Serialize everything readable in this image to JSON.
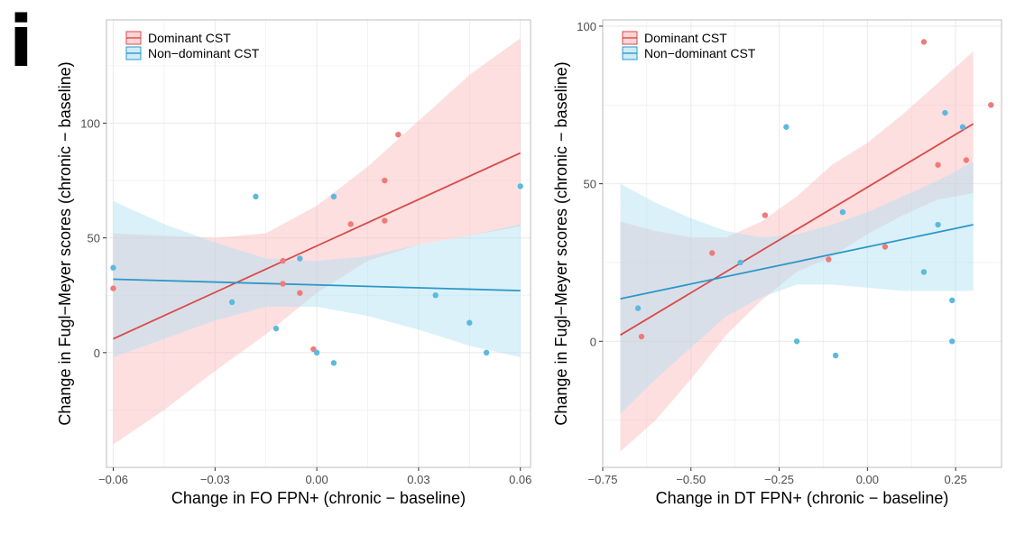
{
  "panel_label": "i",
  "colors": {
    "dominant": "#d94a48",
    "dominant_fill": "#fbb9bb",
    "dominant_point": "#ef7b78",
    "nondominant": "#2c98c8",
    "nondominant_fill": "#aee0f2",
    "nondominant_point": "#5cb9df",
    "grid": "#ebebeb",
    "frame": "#bdbdbd"
  },
  "chart_data": [
    {
      "type": "scatter",
      "title": "",
      "xlabel": "Change in FO FPN+ (chronic − baseline)",
      "ylabel": "Change in Fugl−Meyer scores (chronic − baseline)",
      "xlim": [
        -0.062,
        0.063
      ],
      "ylim": [
        -50,
        145
      ],
      "x_ticks": [
        -0.06,
        -0.03,
        0.0,
        0.03,
        0.06
      ],
      "x_tick_labels": [
        "−0.06",
        "−0.03",
        "0.00",
        "0.03",
        "0.06"
      ],
      "y_ticks": [
        0,
        50,
        100
      ],
      "y_tick_labels": [
        "0",
        "50",
        "100"
      ],
      "grid": true,
      "legend": {
        "position": "top-left",
        "entries": [
          "Dominant CST",
          "Non−dominant CST"
        ]
      },
      "series": [
        {
          "name": "Dominant CST",
          "points": [
            {
              "x": -0.06,
              "y": 28
            },
            {
              "x": -0.01,
              "y": 40
            },
            {
              "x": -0.01,
              "y": 30
            },
            {
              "x": -0.005,
              "y": 26
            },
            {
              "x": -0.001,
              "y": 1.5
            },
            {
              "x": 0.01,
              "y": 56
            },
            {
              "x": 0.02,
              "y": 75
            },
            {
              "x": 0.02,
              "y": 57.5
            },
            {
              "x": 0.024,
              "y": 95
            }
          ],
          "fit": {
            "x": [
              -0.06,
              0.06
            ],
            "y": [
              6,
              87
            ]
          },
          "ci_band": {
            "x": [
              -0.06,
              -0.045,
              -0.03,
              -0.015,
              0.0,
              0.015,
              0.03,
              0.045,
              0.06
            ],
            "lower": [
              -40,
              -25,
              -8,
              8,
              26,
              40,
              47,
              51,
              55
            ],
            "upper": [
              52,
              51,
              50,
              52,
              64,
              81,
              101,
              121,
              137
            ]
          }
        },
        {
          "name": "Non−dominant CST",
          "points": [
            {
              "x": -0.06,
              "y": 37
            },
            {
              "x": -0.025,
              "y": 22
            },
            {
              "x": -0.018,
              "y": 68
            },
            {
              "x": -0.012,
              "y": 10.5
            },
            {
              "x": -0.005,
              "y": 41
            },
            {
              "x": 0.0,
              "y": 0
            },
            {
              "x": 0.005,
              "y": 68
            },
            {
              "x": 0.005,
              "y": -4.5
            },
            {
              "x": 0.035,
              "y": 25
            },
            {
              "x": 0.045,
              "y": 13
            },
            {
              "x": 0.05,
              "y": 0
            },
            {
              "x": 0.06,
              "y": 72.5
            }
          ],
          "fit": {
            "x": [
              -0.06,
              0.06
            ],
            "y": [
              32,
              27
            ]
          },
          "ci_band": {
            "x": [
              -0.06,
              -0.045,
              -0.03,
              -0.015,
              0.0,
              0.015,
              0.03,
              0.045,
              0.06
            ],
            "lower": [
              -2,
              6,
              14,
              20,
              20,
              16,
              10,
              3,
              -2
            ],
            "upper": [
              66,
              56,
              48,
              41,
              40,
              42,
              47,
              51,
              56
            ]
          }
        }
      ]
    },
    {
      "type": "scatter",
      "title": "",
      "xlabel": "Change in DT FPN+ (chronic − baseline)",
      "ylabel": "Change in Fugl−Meyer scores (chronic − baseline)",
      "xlim": [
        -0.75,
        0.38
      ],
      "ylim": [
        -40,
        102
      ],
      "x_ticks": [
        -0.75,
        -0.5,
        -0.25,
        0.0,
        0.25
      ],
      "x_tick_labels": [
        "−0.75",
        "−0.50",
        "−0.25",
        "0.00",
        "0.25"
      ],
      "y_ticks": [
        0,
        50,
        100
      ],
      "y_tick_labels": [
        "0",
        "50",
        "100"
      ],
      "grid": true,
      "legend": {
        "position": "top-left",
        "entries": [
          "Dominant CST",
          "Non−dominant CST"
        ]
      },
      "series": [
        {
          "name": "Dominant CST",
          "points": [
            {
              "x": -0.64,
              "y": 1.5
            },
            {
              "x": -0.44,
              "y": 28
            },
            {
              "x": -0.29,
              "y": 40
            },
            {
              "x": -0.11,
              "y": 26
            },
            {
              "x": 0.05,
              "y": 30
            },
            {
              "x": 0.16,
              "y": 95
            },
            {
              "x": 0.2,
              "y": 56
            },
            {
              "x": 0.28,
              "y": 57.5
            },
            {
              "x": 0.35,
              "y": 75
            }
          ],
          "fit": {
            "x": [
              -0.7,
              0.3
            ],
            "y": [
              2,
              69
            ]
          },
          "ci_band": {
            "x": [
              -0.7,
              -0.6,
              -0.5,
              -0.4,
              -0.3,
              -0.2,
              -0.1,
              0.0,
              0.1,
              0.2,
              0.3
            ],
            "lower": [
              -35,
              -25,
              -12,
              2,
              13,
              22,
              27,
              34,
              40,
              45,
              47
            ],
            "upper": [
              38,
              35,
              33,
              33,
              38,
              46,
              56,
              63,
              72,
              82,
              92
            ]
          }
        },
        {
          "name": "Non−dominant CST",
          "points": [
            {
              "x": -0.65,
              "y": 10.5
            },
            {
              "x": -0.36,
              "y": 25
            },
            {
              "x": -0.23,
              "y": 68
            },
            {
              "x": -0.2,
              "y": 0
            },
            {
              "x": -0.09,
              "y": -4.5
            },
            {
              "x": -0.07,
              "y": 41
            },
            {
              "x": 0.16,
              "y": 22
            },
            {
              "x": 0.2,
              "y": 37
            },
            {
              "x": 0.22,
              "y": 72.5
            },
            {
              "x": 0.24,
              "y": 13
            },
            {
              "x": 0.24,
              "y": 0
            },
            {
              "x": 0.27,
              "y": 68
            }
          ],
          "fit": {
            "x": [
              -0.7,
              0.3
            ],
            "y": [
              13.5,
              37
            ]
          },
          "ci_band": {
            "x": [
              -0.7,
              -0.6,
              -0.5,
              -0.4,
              -0.3,
              -0.2,
              -0.1,
              0.0,
              0.1,
              0.2,
              0.3
            ],
            "lower": [
              -23,
              -12,
              -2,
              8,
              14,
              18,
              18,
              17,
              16,
              16,
              16
            ],
            "upper": [
              50,
              44,
              39,
              35,
              33,
              34,
              37,
              41,
              46,
              51,
              57
            ]
          }
        }
      ]
    }
  ]
}
